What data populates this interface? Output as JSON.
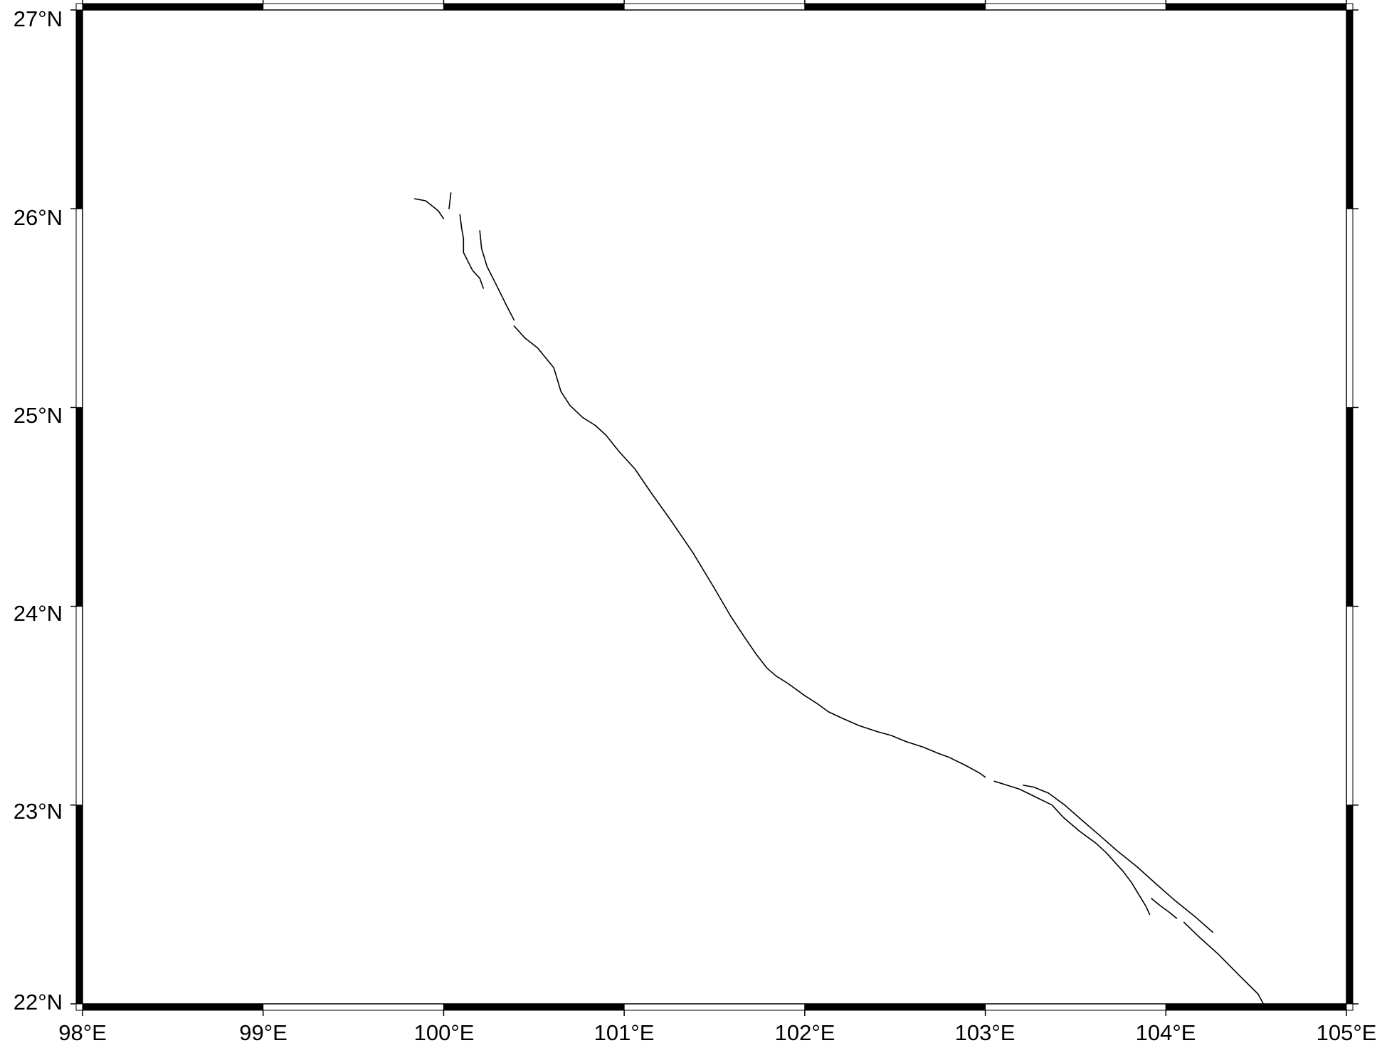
{
  "map": {
    "x_ticks": [
      "98°E",
      "99°E",
      "100°E",
      "101°E",
      "102°E",
      "103°E",
      "104°E",
      "105°E"
    ],
    "y_ticks": [
      "27°N",
      "26°N",
      "25°N",
      "24°N",
      "23°N",
      "22°N"
    ],
    "lon_range": [
      98,
      105
    ],
    "lat_range": [
      22,
      27
    ],
    "frame_style": "alternating black/white fancy frame",
    "line_color": "#000000",
    "fault_traces": [
      [
        [
          99.84,
          26.05
        ],
        [
          99.9,
          26.04
        ],
        [
          99.97,
          25.99
        ],
        [
          100.0,
          25.95
        ]
      ],
      [
        [
          100.04,
          26.08
        ],
        [
          100.03,
          26.0
        ]
      ],
      [
        [
          100.09,
          25.97
        ],
        [
          100.1,
          25.9
        ],
        [
          100.11,
          25.85
        ],
        [
          100.11,
          25.78
        ],
        [
          100.16,
          25.69
        ],
        [
          100.2,
          25.65
        ],
        [
          100.22,
          25.6
        ]
      ],
      [
        [
          100.2,
          25.89
        ],
        [
          100.21,
          25.8
        ],
        [
          100.24,
          25.71
        ],
        [
          100.29,
          25.62
        ],
        [
          100.35,
          25.51
        ],
        [
          100.39,
          25.44
        ]
      ],
      [
        [
          100.39,
          25.41
        ],
        [
          100.45,
          25.35
        ],
        [
          100.52,
          25.3
        ],
        [
          100.61,
          25.2
        ],
        [
          100.65,
          25.08
        ],
        [
          100.7,
          25.01
        ],
        [
          100.77,
          24.95
        ],
        [
          100.84,
          24.91
        ],
        [
          100.9,
          24.86
        ],
        [
          100.97,
          24.78
        ],
        [
          101.06,
          24.69
        ],
        [
          101.15,
          24.57
        ],
        [
          101.26,
          24.43
        ],
        [
          101.38,
          24.27
        ],
        [
          101.5,
          24.09
        ],
        [
          101.59,
          23.95
        ],
        [
          101.67,
          23.84
        ],
        [
          101.73,
          23.76
        ],
        [
          101.79,
          23.69
        ],
        [
          101.84,
          23.65
        ],
        [
          101.91,
          23.61
        ],
        [
          102.0,
          23.55
        ],
        [
          102.07,
          23.51
        ],
        [
          102.13,
          23.47
        ],
        [
          102.2,
          23.44
        ],
        [
          102.3,
          23.4
        ],
        [
          102.4,
          23.37
        ],
        [
          102.48,
          23.35
        ],
        [
          102.56,
          23.32
        ],
        [
          102.66,
          23.29
        ],
        [
          102.74,
          23.26
        ],
        [
          102.8,
          23.24
        ],
        [
          102.89,
          23.2
        ],
        [
          102.97,
          23.16
        ],
        [
          103.0,
          23.14
        ]
      ],
      [
        [
          103.05,
          23.12
        ],
        [
          103.12,
          23.1
        ],
        [
          103.19,
          23.08
        ],
        [
          103.28,
          23.04
        ],
        [
          103.37,
          23.0
        ],
        [
          103.43,
          22.94
        ],
        [
          103.52,
          22.87
        ],
        [
          103.61,
          22.81
        ],
        [
          103.67,
          22.76
        ],
        [
          103.72,
          22.71
        ],
        [
          103.76,
          22.67
        ],
        [
          103.81,
          22.61
        ],
        [
          103.85,
          22.55
        ],
        [
          103.89,
          22.49
        ],
        [
          103.91,
          22.45
        ]
      ],
      [
        [
          103.21,
          23.1
        ],
        [
          103.27,
          23.09
        ],
        [
          103.35,
          23.06
        ],
        [
          103.44,
          23.0
        ],
        [
          103.54,
          22.92
        ],
        [
          103.63,
          22.85
        ],
        [
          103.73,
          22.77
        ],
        [
          103.84,
          22.69
        ],
        [
          103.95,
          22.6
        ],
        [
          104.05,
          22.52
        ],
        [
          104.16,
          22.44
        ],
        [
          104.26,
          22.36
        ]
      ],
      [
        [
          103.92,
          22.53
        ],
        [
          103.96,
          22.5
        ],
        [
          104.02,
          22.46
        ],
        [
          104.06,
          22.43
        ]
      ],
      [
        [
          104.1,
          22.41
        ],
        [
          104.18,
          22.34
        ],
        [
          104.29,
          22.25
        ],
        [
          104.41,
          22.14
        ],
        [
          104.51,
          22.05
        ],
        [
          104.54,
          22.0
        ]
      ]
    ]
  }
}
